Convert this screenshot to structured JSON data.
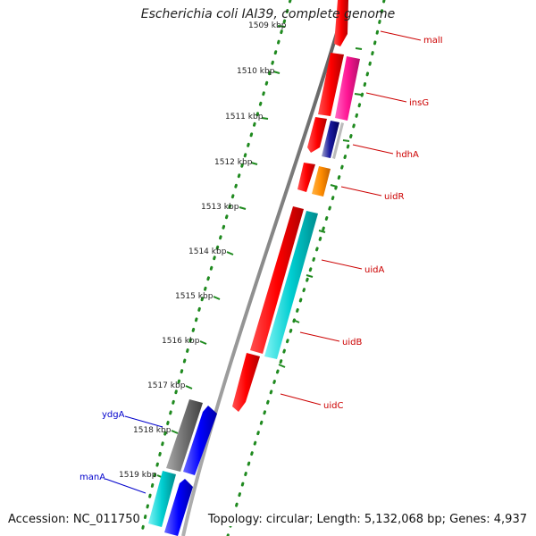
{
  "title": "Escherichia coli IAI39, complete genome",
  "footer": {
    "accession": "Accession: NC_011750",
    "topology": "Topology: circular; Length: 5,132,068 bp; Genes: 4,937"
  },
  "colors": {
    "backbone": "#8a8a8a",
    "tick_dots": "#1f8a1f",
    "label_right": "#cc0000",
    "label_left": "#0000cc"
  },
  "ticks": [
    "1509 kbp",
    "1510 kbp",
    "1511 kbp",
    "1512 kbp",
    "1513 kbp",
    "1514 kbp",
    "1515 kbp",
    "1516 kbp",
    "1517 kbp",
    "1518 kbp",
    "1519 kbp"
  ],
  "genes_right": [
    {
      "name": "malI",
      "color": "#ff0000"
    },
    {
      "name": "insG",
      "color": "#ff1493"
    },
    {
      "name": "hdhA",
      "color": "#00008b"
    },
    {
      "name": "uidR",
      "color": "#ff8c00"
    },
    {
      "name": "uidA",
      "color": "#00ced1"
    },
    {
      "name": "uidB",
      "color": "#00ced1"
    },
    {
      "name": "uidC",
      "color": "#ff0000"
    }
  ],
  "genes_left": [
    {
      "name": "ydgA",
      "color": "#0000ff"
    },
    {
      "name": "manA",
      "color": "#0000ff"
    }
  ]
}
